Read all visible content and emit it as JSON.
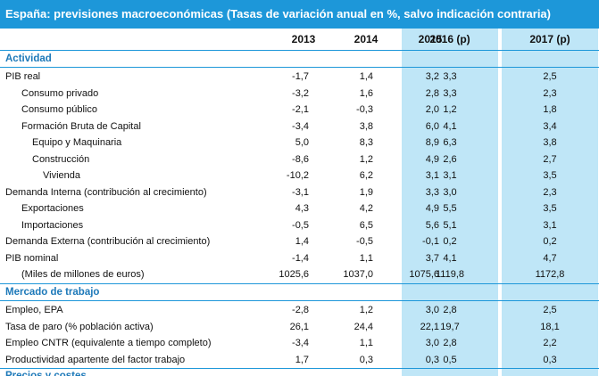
{
  "title": "España: previsiones macroeconómicas (Tasas de variación anual en %, salvo indicación contraria)",
  "columns": [
    "2013",
    "2014",
    "2015",
    "2016 (p)",
    "2017 (p)"
  ],
  "sections": {
    "actividad": "Actividad",
    "mercado": "Mercado de trabajo",
    "next": "Precios y costes"
  },
  "rows": [
    {
      "label": "PIB real",
      "indent": 0,
      "values": [
        "-1,7",
        "1,4",
        "3,2",
        "3,3",
        "2,5"
      ]
    },
    {
      "label": "Consumo privado",
      "indent": 1,
      "values": [
        "-3,2",
        "1,6",
        "2,8",
        "3,3",
        "2,3"
      ]
    },
    {
      "label": "Consumo público",
      "indent": 1,
      "values": [
        "-2,1",
        "-0,3",
        "2,0",
        "1,2",
        "1,8"
      ]
    },
    {
      "label": "Formación Bruta de Capital",
      "indent": 1,
      "values": [
        "-3,4",
        "3,8",
        "6,0",
        "4,1",
        "3,4"
      ]
    },
    {
      "label": "Equipo y Maquinaria",
      "indent": 2,
      "values": [
        "5,0",
        "8,3",
        "8,9",
        "6,3",
        "3,8"
      ]
    },
    {
      "label": "Construcción",
      "indent": 2,
      "values": [
        "-8,6",
        "1,2",
        "4,9",
        "2,6",
        "2,7"
      ]
    },
    {
      "label": "Vivienda",
      "indent": 3,
      "values": [
        "-10,2",
        "6,2",
        "3,1",
        "3,1",
        "3,5"
      ]
    },
    {
      "label": "Demanda Interna (contribución al crecimiento)",
      "indent": 0,
      "values": [
        "-3,1",
        "1,9",
        "3,3",
        "3,0",
        "2,3"
      ]
    },
    {
      "label": "Exportaciones",
      "indent": 1,
      "values": [
        "4,3",
        "4,2",
        "4,9",
        "5,5",
        "3,5"
      ]
    },
    {
      "label": "Importaciones",
      "indent": 1,
      "values": [
        "-0,5",
        "6,5",
        "5,6",
        "5,1",
        "3,1"
      ]
    },
    {
      "label": "Demanda Externa (contribución al crecimiento)",
      "indent": 0,
      "values": [
        "1,4",
        "-0,5",
        "-0,1",
        "0,2",
        "0,2"
      ]
    },
    {
      "label": "PIB nominal",
      "indent": 0,
      "values": [
        "-1,4",
        "1,1",
        "3,7",
        "4,1",
        "4,7"
      ]
    },
    {
      "label": "(Miles de millones de euros)",
      "indent": 1,
      "values": [
        "1025,6",
        "1037,0",
        "1075,6",
        "1119,8",
        "1172,8"
      ]
    }
  ],
  "labor_rows": [
    {
      "label": "Empleo, EPA",
      "indent": 0,
      "values": [
        "-2,8",
        "1,2",
        "3,0",
        "2,8",
        "2,5"
      ]
    },
    {
      "label": "Tasa de paro (% población activa)",
      "indent": 0,
      "values": [
        "26,1",
        "24,4",
        "22,1",
        "19,7",
        "18,1"
      ]
    },
    {
      "label": "Empleo CNTR (equivalente a tiempo completo)",
      "indent": 0,
      "values": [
        "-3,4",
        "1,1",
        "3,0",
        "2,8",
        "2,2"
      ]
    },
    {
      "label": "Productividad apartente del factor trabajo",
      "indent": 0,
      "values": [
        "1,7",
        "0,3",
        "0,3",
        "0,5",
        "0,3"
      ]
    }
  ],
  "colors": {
    "accent": "#1d97d9",
    "highlight": "#bfe6f7",
    "section_text": "#1d79b9"
  }
}
